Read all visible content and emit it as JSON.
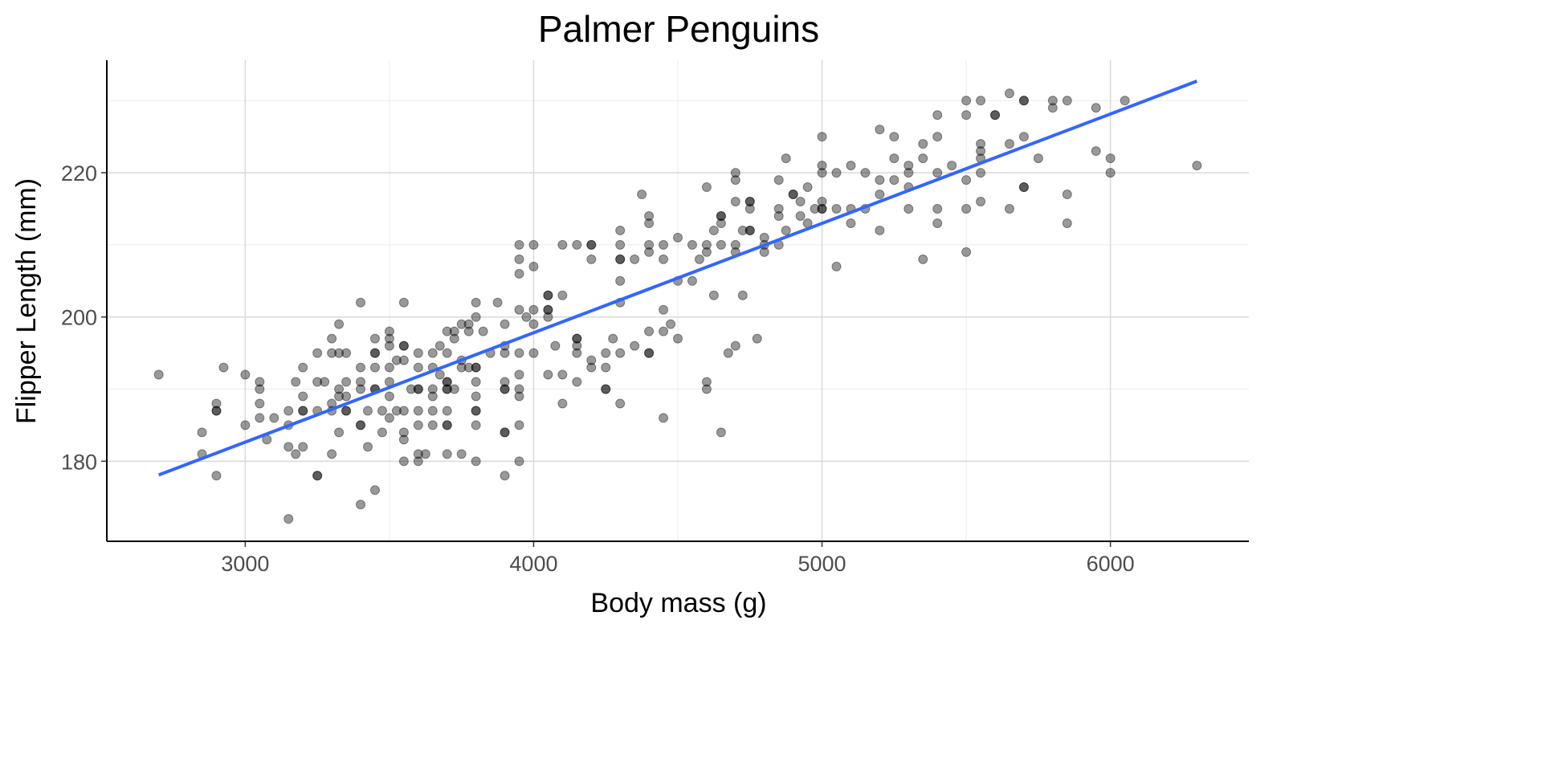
{
  "chart_data": {
    "type": "scatter",
    "title": "Palmer Penguins",
    "xlabel": "Body mass (g)",
    "ylabel": "Flipper Length (mm)",
    "xlim": [
      2520,
      6480
    ],
    "ylim": [
      168.9,
      235.6
    ],
    "x_ticks": [
      3000,
      4000,
      5000,
      6000
    ],
    "y_ticks": [
      180,
      200,
      220
    ],
    "x_minor": [
      3500,
      4500,
      5500
    ],
    "y_minor": [
      190,
      210,
      230
    ],
    "grid": true,
    "point_color": "#000000",
    "point_alpha": 0.4,
    "fit_line_color": "#3366FF",
    "fit_line": {
      "x": [
        2700,
        6300
      ],
      "y": [
        178.1,
        232.7
      ]
    },
    "points": [
      [
        2700,
        192
      ],
      [
        2850,
        184
      ],
      [
        2850,
        181
      ],
      [
        2900,
        188
      ],
      [
        2900,
        187
      ],
      [
        2900,
        187
      ],
      [
        2900,
        178
      ],
      [
        2925,
        193
      ],
      [
        3000,
        192
      ],
      [
        3000,
        185
      ],
      [
        3050,
        191
      ],
      [
        3050,
        190
      ],
      [
        3050,
        188
      ],
      [
        3050,
        186
      ],
      [
        3075,
        183
      ],
      [
        3100,
        186
      ],
      [
        3150,
        187
      ],
      [
        3150,
        185
      ],
      [
        3150,
        182
      ],
      [
        3150,
        172
      ],
      [
        3175,
        191
      ],
      [
        3175,
        181
      ],
      [
        3200,
        193
      ],
      [
        3200,
        189
      ],
      [
        3200,
        187
      ],
      [
        3200,
        187
      ],
      [
        3200,
        182
      ],
      [
        3250,
        195
      ],
      [
        3250,
        191
      ],
      [
        3250,
        187
      ],
      [
        3250,
        178
      ],
      [
        3250,
        178
      ],
      [
        3275,
        191
      ],
      [
        3300,
        197
      ],
      [
        3300,
        195
      ],
      [
        3300,
        188
      ],
      [
        3300,
        187
      ],
      [
        3300,
        181
      ],
      [
        3325,
        199
      ],
      [
        3325,
        195
      ],
      [
        3325,
        190
      ],
      [
        3325,
        189
      ],
      [
        3325,
        184
      ],
      [
        3350,
        195
      ],
      [
        3350,
        191
      ],
      [
        3350,
        189
      ],
      [
        3350,
        187
      ],
      [
        3350,
        187
      ],
      [
        3400,
        202
      ],
      [
        3400,
        193
      ],
      [
        3400,
        191
      ],
      [
        3400,
        190
      ],
      [
        3400,
        185
      ],
      [
        3400,
        185
      ],
      [
        3400,
        174
      ],
      [
        3425,
        187
      ],
      [
        3425,
        182
      ],
      [
        3450,
        197
      ],
      [
        3450,
        195
      ],
      [
        3450,
        195
      ],
      [
        3450,
        193
      ],
      [
        3450,
        190
      ],
      [
        3450,
        190
      ],
      [
        3450,
        176
      ],
      [
        3475,
        187
      ],
      [
        3475,
        184
      ],
      [
        3500,
        198
      ],
      [
        3500,
        197
      ],
      [
        3500,
        196
      ],
      [
        3500,
        193
      ],
      [
        3500,
        191
      ],
      [
        3500,
        189
      ],
      [
        3500,
        186
      ],
      [
        3525,
        194
      ],
      [
        3525,
        187
      ],
      [
        3550,
        202
      ],
      [
        3550,
        196
      ],
      [
        3550,
        196
      ],
      [
        3550,
        194
      ],
      [
        3550,
        187
      ],
      [
        3550,
        184
      ],
      [
        3550,
        183
      ],
      [
        3550,
        180
      ],
      [
        3575,
        190
      ],
      [
        3600,
        195
      ],
      [
        3600,
        193
      ],
      [
        3600,
        190
      ],
      [
        3600,
        190
      ],
      [
        3600,
        187
      ],
      [
        3600,
        185
      ],
      [
        3600,
        181
      ],
      [
        3600,
        180
      ],
      [
        3625,
        181
      ],
      [
        3650,
        195
      ],
      [
        3650,
        193
      ],
      [
        3650,
        190
      ],
      [
        3650,
        189
      ],
      [
        3650,
        187
      ],
      [
        3650,
        185
      ],
      [
        3675,
        196
      ],
      [
        3675,
        192
      ],
      [
        3700,
        198
      ],
      [
        3700,
        195
      ],
      [
        3700,
        191
      ],
      [
        3700,
        191
      ],
      [
        3700,
        190
      ],
      [
        3700,
        190
      ],
      [
        3700,
        187
      ],
      [
        3700,
        185
      ],
      [
        3700,
        185
      ],
      [
        3700,
        181
      ],
      [
        3725,
        198
      ],
      [
        3725,
        197
      ],
      [
        3725,
        190
      ],
      [
        3750,
        199
      ],
      [
        3750,
        194
      ],
      [
        3750,
        193
      ],
      [
        3750,
        181
      ],
      [
        3775,
        199
      ],
      [
        3775,
        198
      ],
      [
        3775,
        193
      ],
      [
        3800,
        202
      ],
      [
        3800,
        200
      ],
      [
        3800,
        193
      ],
      [
        3800,
        193
      ],
      [
        3800,
        191
      ],
      [
        3800,
        189
      ],
      [
        3800,
        187
      ],
      [
        3800,
        187
      ],
      [
        3800,
        185
      ],
      [
        3800,
        180
      ],
      [
        3825,
        198
      ],
      [
        3850,
        195
      ],
      [
        3875,
        202
      ],
      [
        3900,
        199
      ],
      [
        3900,
        196
      ],
      [
        3900,
        195
      ],
      [
        3900,
        191
      ],
      [
        3900,
        190
      ],
      [
        3900,
        190
      ],
      [
        3900,
        184
      ],
      [
        3900,
        184
      ],
      [
        3900,
        178
      ],
      [
        3950,
        210
      ],
      [
        3950,
        208
      ],
      [
        3950,
        206
      ],
      [
        3950,
        201
      ],
      [
        3950,
        195
      ],
      [
        3950,
        192
      ],
      [
        3950,
        190
      ],
      [
        3950,
        189
      ],
      [
        3950,
        185
      ],
      [
        3950,
        180
      ],
      [
        3975,
        200
      ],
      [
        4000,
        210
      ],
      [
        4000,
        207
      ],
      [
        4000,
        201
      ],
      [
        4000,
        199
      ],
      [
        4000,
        195
      ],
      [
        4050,
        203
      ],
      [
        4050,
        203
      ],
      [
        4050,
        201
      ],
      [
        4050,
        201
      ],
      [
        4050,
        200
      ],
      [
        4050,
        192
      ],
      [
        4075,
        196
      ],
      [
        4100,
        210
      ],
      [
        4100,
        203
      ],
      [
        4100,
        192
      ],
      [
        4100,
        188
      ],
      [
        4150,
        210
      ],
      [
        4150,
        197
      ],
      [
        4150,
        197
      ],
      [
        4150,
        196
      ],
      [
        4150,
        195
      ],
      [
        4150,
        191
      ],
      [
        4200,
        210
      ],
      [
        4200,
        210
      ],
      [
        4200,
        208
      ],
      [
        4200,
        194
      ],
      [
        4200,
        193
      ],
      [
        4250,
        195
      ],
      [
        4250,
        193
      ],
      [
        4250,
        190
      ],
      [
        4250,
        190
      ],
      [
        4275,
        197
      ],
      [
        4300,
        212
      ],
      [
        4300,
        210
      ],
      [
        4300,
        208
      ],
      [
        4300,
        208
      ],
      [
        4300,
        205
      ],
      [
        4300,
        202
      ],
      [
        4300,
        195
      ],
      [
        4300,
        188
      ],
      [
        4350,
        208
      ],
      [
        4350,
        196
      ],
      [
        4375,
        217
      ],
      [
        4400,
        214
      ],
      [
        4400,
        213
      ],
      [
        4400,
        210
      ],
      [
        4400,
        209
      ],
      [
        4400,
        198
      ],
      [
        4400,
        195
      ],
      [
        4400,
        195
      ],
      [
        4450,
        210
      ],
      [
        4450,
        208
      ],
      [
        4450,
        201
      ],
      [
        4450,
        198
      ],
      [
        4450,
        186
      ],
      [
        4475,
        199
      ],
      [
        4500,
        211
      ],
      [
        4500,
        205
      ],
      [
        4500,
        197
      ],
      [
        4550,
        210
      ],
      [
        4550,
        205
      ],
      [
        4575,
        208
      ],
      [
        4600,
        218
      ],
      [
        4600,
        210
      ],
      [
        4600,
        209
      ],
      [
        4600,
        191
      ],
      [
        4600,
        190
      ],
      [
        4625,
        212
      ],
      [
        4625,
        203
      ],
      [
        4650,
        214
      ],
      [
        4650,
        214
      ],
      [
        4650,
        213
      ],
      [
        4650,
        210
      ],
      [
        4650,
        184
      ],
      [
        4675,
        195
      ],
      [
        4700,
        220
      ],
      [
        4700,
        219
      ],
      [
        4700,
        216
      ],
      [
        4700,
        210
      ],
      [
        4700,
        209
      ],
      [
        4700,
        196
      ],
      [
        4725,
        212
      ],
      [
        4725,
        203
      ],
      [
        4750,
        216
      ],
      [
        4750,
        216
      ],
      [
        4750,
        215
      ],
      [
        4750,
        212
      ],
      [
        4750,
        212
      ],
      [
        4775,
        197
      ],
      [
        4800,
        211
      ],
      [
        4800,
        210
      ],
      [
        4800,
        209
      ],
      [
        4850,
        219
      ],
      [
        4850,
        215
      ],
      [
        4850,
        214
      ],
      [
        4850,
        210
      ],
      [
        4875,
        222
      ],
      [
        4875,
        212
      ],
      [
        4900,
        217
      ],
      [
        4900,
        217
      ],
      [
        4925,
        216
      ],
      [
        4925,
        214
      ],
      [
        4950,
        218
      ],
      [
        4950,
        213
      ],
      [
        4975,
        215
      ],
      [
        5000,
        225
      ],
      [
        5000,
        221
      ],
      [
        5000,
        220
      ],
      [
        5000,
        216
      ],
      [
        5000,
        215
      ],
      [
        5000,
        215
      ],
      [
        5050,
        220
      ],
      [
        5050,
        215
      ],
      [
        5050,
        207
      ],
      [
        5100,
        221
      ],
      [
        5100,
        215
      ],
      [
        5100,
        213
      ],
      [
        5150,
        220
      ],
      [
        5150,
        215
      ],
      [
        5200,
        226
      ],
      [
        5200,
        219
      ],
      [
        5200,
        217
      ],
      [
        5200,
        212
      ],
      [
        5250,
        225
      ],
      [
        5250,
        222
      ],
      [
        5250,
        219
      ],
      [
        5300,
        221
      ],
      [
        5300,
        220
      ],
      [
        5300,
        218
      ],
      [
        5300,
        215
      ],
      [
        5350,
        224
      ],
      [
        5350,
        222
      ],
      [
        5350,
        208
      ],
      [
        5400,
        228
      ],
      [
        5400,
        225
      ],
      [
        5400,
        220
      ],
      [
        5400,
        215
      ],
      [
        5400,
        213
      ],
      [
        5450,
        221
      ],
      [
        5500,
        230
      ],
      [
        5500,
        228
      ],
      [
        5500,
        219
      ],
      [
        5500,
        215
      ],
      [
        5500,
        209
      ],
      [
        5550,
        230
      ],
      [
        5550,
        224
      ],
      [
        5550,
        223
      ],
      [
        5550,
        222
      ],
      [
        5550,
        220
      ],
      [
        5550,
        216
      ],
      [
        5600,
        228
      ],
      [
        5600,
        228
      ],
      [
        5650,
        231
      ],
      [
        5650,
        224
      ],
      [
        5650,
        215
      ],
      [
        5700,
        230
      ],
      [
        5700,
        230
      ],
      [
        5700,
        225
      ],
      [
        5700,
        218
      ],
      [
        5700,
        218
      ],
      [
        5750,
        222
      ],
      [
        5800,
        230
      ],
      [
        5800,
        229
      ],
      [
        5850,
        230
      ],
      [
        5850,
        217
      ],
      [
        5850,
        213
      ],
      [
        5950,
        229
      ],
      [
        5950,
        223
      ],
      [
        6000,
        222
      ],
      [
        6000,
        220
      ],
      [
        6050,
        230
      ],
      [
        6300,
        221
      ]
    ]
  }
}
